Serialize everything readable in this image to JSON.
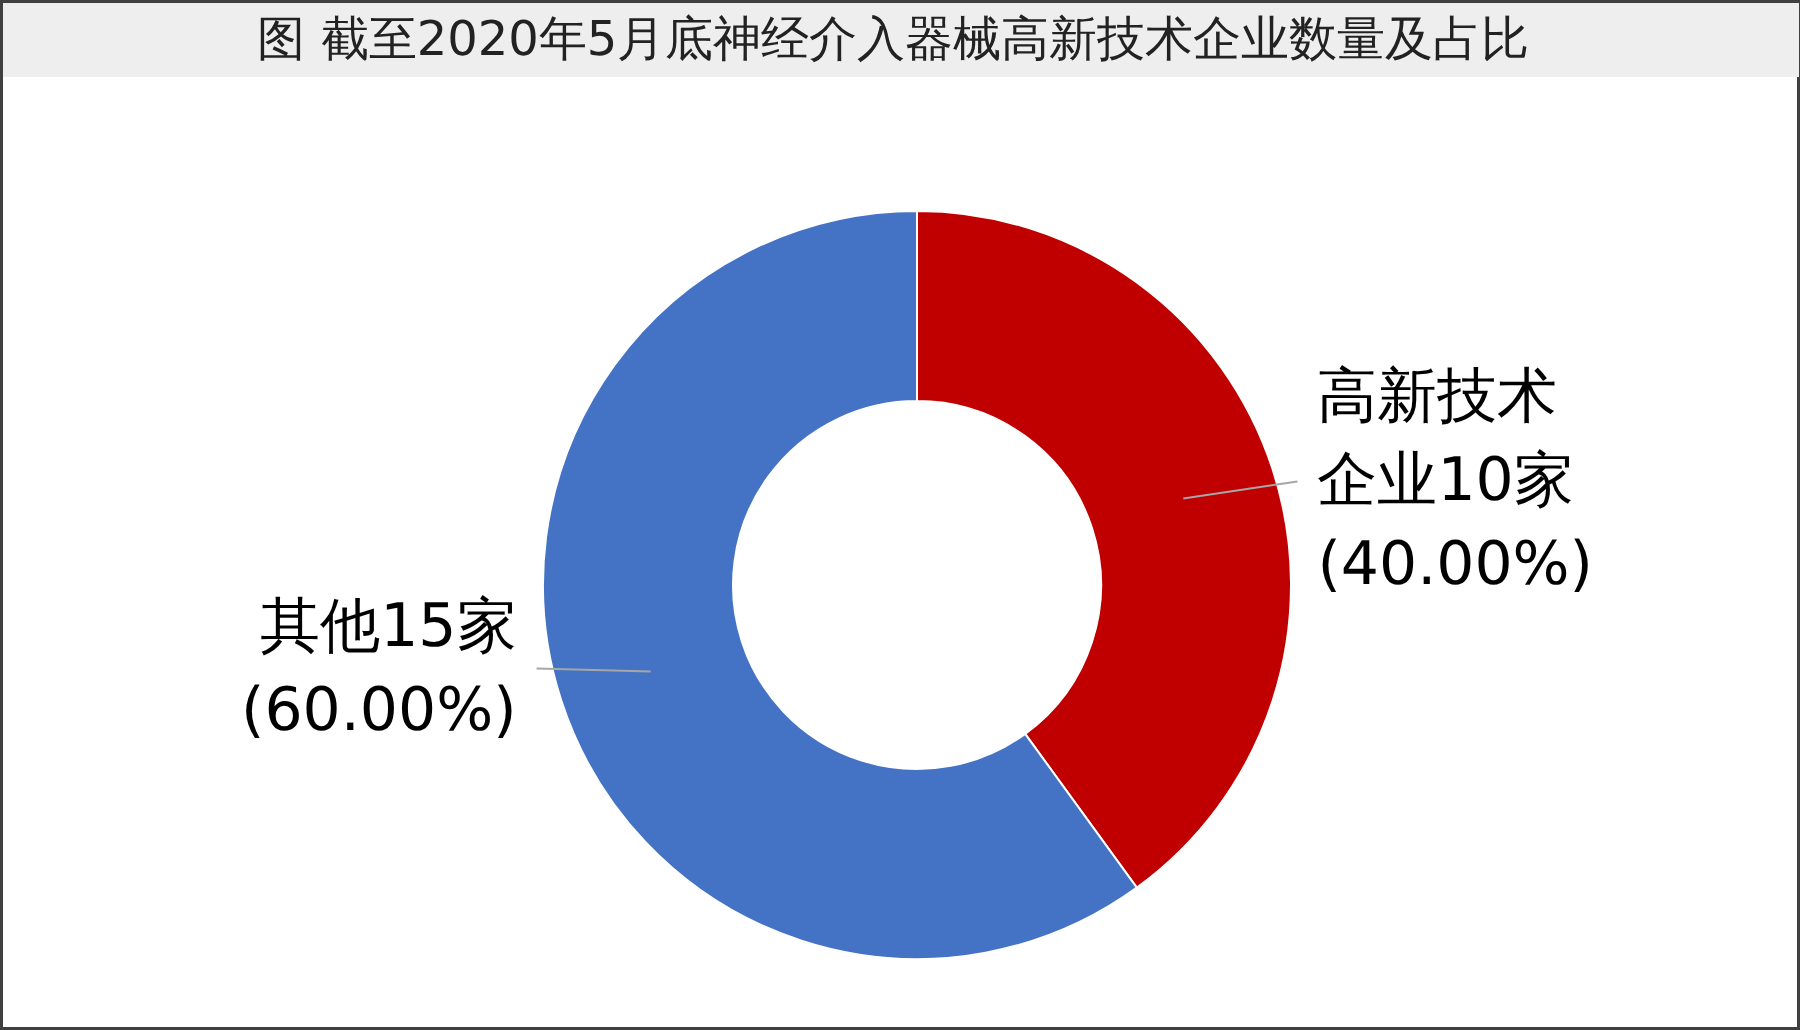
{
  "chart_data": {
    "type": "donut",
    "title": "图  截至2020年5月底神经介入器械高新技术企业数量及占比",
    "categories": [
      "高新技术企业10家 (40.00%)",
      "其他15家 (60.00%)"
    ],
    "values": [
      10,
      15
    ],
    "colors": [
      "#c00000",
      "#4472c4"
    ]
  }
}
